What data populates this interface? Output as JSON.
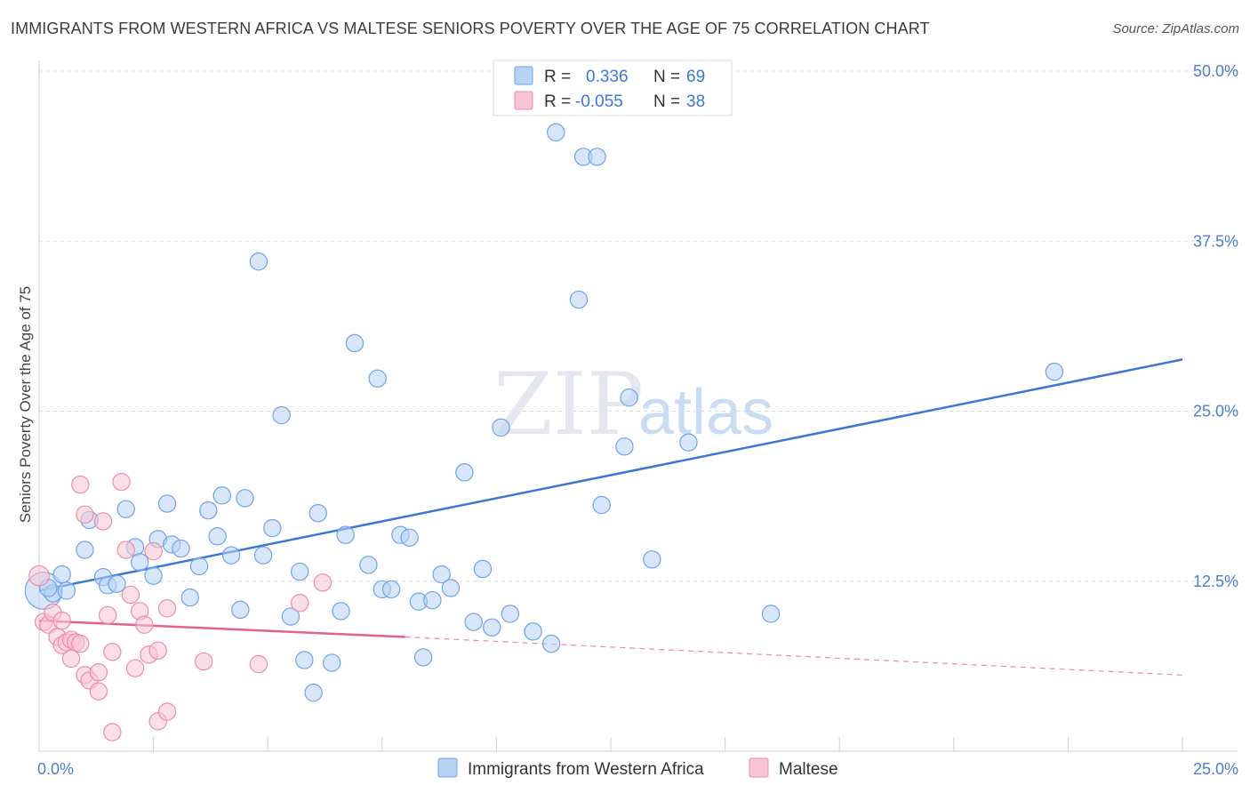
{
  "title": "IMMIGRANTS FROM WESTERN AFRICA VS MALTESE SENIORS POVERTY OVER THE AGE OF 75 CORRELATION CHART",
  "source": "Source: ZipAtlas.com",
  "watermark": {
    "zip": "ZIP",
    "atlas": "atlas"
  },
  "chart_data": {
    "type": "scatter",
    "ylabel": "Seniors Poverty Over the Age of 75",
    "xlim": [
      0,
      25
    ],
    "ylim": [
      0,
      50
    ],
    "x_tick_labels": [
      "0.0%",
      "25.0%"
    ],
    "y_ticks": [
      12.5,
      25.0,
      37.5,
      50.0
    ],
    "y_tick_labels": [
      "12.5%",
      "25.0%",
      "37.5%",
      "50.0%"
    ],
    "grid": true,
    "legend_position": "bottom",
    "stats": [
      {
        "r_label": "R =",
        "r": "0.336",
        "n_label": "N =",
        "n": "69"
      },
      {
        "r_label": "R =",
        "r": "-0.055",
        "n_label": "N =",
        "n": "38"
      }
    ],
    "series": [
      {
        "name": "Immigrants from Western Africa",
        "color": "#6fa3e8",
        "fill": "#b8d2f4",
        "trend": {
          "x": [
            0,
            25
          ],
          "y": [
            11.8,
            28.8
          ],
          "dashed_after": null
        },
        "points": [
          [
            0.1,
            11.8
          ],
          [
            0.3,
            11.6
          ],
          [
            0.6,
            11.8
          ],
          [
            0.5,
            13.0
          ],
          [
            1.0,
            14.8
          ],
          [
            1.1,
            17.0
          ],
          [
            1.4,
            12.8
          ],
          [
            1.5,
            12.2
          ],
          [
            1.7,
            12.3
          ],
          [
            1.9,
            17.8
          ],
          [
            2.1,
            15.0
          ],
          [
            2.2,
            13.9
          ],
          [
            2.5,
            12.9
          ],
          [
            2.6,
            15.6
          ],
          [
            2.8,
            18.2
          ],
          [
            2.9,
            15.2
          ],
          [
            3.1,
            14.9
          ],
          [
            3.3,
            11.3
          ],
          [
            3.5,
            13.6
          ],
          [
            3.7,
            17.7
          ],
          [
            3.9,
            15.8
          ],
          [
            4.0,
            18.8
          ],
          [
            4.2,
            14.4
          ],
          [
            4.4,
            10.4
          ],
          [
            4.5,
            18.6
          ],
          [
            4.8,
            36.0
          ],
          [
            4.9,
            14.4
          ],
          [
            5.1,
            16.4
          ],
          [
            5.3,
            24.7
          ],
          [
            5.5,
            9.9
          ],
          [
            5.7,
            13.2
          ],
          [
            5.8,
            6.7
          ],
          [
            6.0,
            4.3
          ],
          [
            6.1,
            17.5
          ],
          [
            6.4,
            6.5
          ],
          [
            6.6,
            10.3
          ],
          [
            6.7,
            15.9
          ],
          [
            6.9,
            30.0
          ],
          [
            7.2,
            13.7
          ],
          [
            7.4,
            27.4
          ],
          [
            7.5,
            11.9
          ],
          [
            7.7,
            11.9
          ],
          [
            7.9,
            15.9
          ],
          [
            8.1,
            15.7
          ],
          [
            8.3,
            11.0
          ],
          [
            8.4,
            6.9
          ],
          [
            8.6,
            11.1
          ],
          [
            8.8,
            13.0
          ],
          [
            9.0,
            12.0
          ],
          [
            9.3,
            20.5
          ],
          [
            9.5,
            9.5
          ],
          [
            9.7,
            13.4
          ],
          [
            9.9,
            9.1
          ],
          [
            10.1,
            23.8
          ],
          [
            10.3,
            10.1
          ],
          [
            10.8,
            8.8
          ],
          [
            11.2,
            7.9
          ],
          [
            11.3,
            45.5
          ],
          [
            11.8,
            33.2
          ],
          [
            11.9,
            43.7
          ],
          [
            12.2,
            43.7
          ],
          [
            12.3,
            18.1
          ],
          [
            12.8,
            22.4
          ],
          [
            12.9,
            26.0
          ],
          [
            13.4,
            14.1
          ],
          [
            14.2,
            22.7
          ],
          [
            16.0,
            10.1
          ],
          [
            22.2,
            27.9
          ],
          [
            0.2,
            12.0
          ]
        ],
        "sizes": [
          26,
          12,
          12,
          12,
          12,
          12,
          12,
          12,
          12,
          12,
          12,
          12,
          12,
          12,
          12,
          12,
          12,
          12,
          12,
          12,
          12,
          12,
          12,
          12,
          12,
          12,
          12,
          12,
          12,
          12,
          12,
          12,
          12,
          12,
          12,
          12,
          12,
          12,
          12,
          12,
          12,
          12,
          12,
          12,
          12,
          12,
          12,
          12,
          12,
          12,
          12,
          12,
          12,
          12,
          12,
          12,
          12,
          12,
          12,
          12,
          12,
          12,
          12,
          12,
          12,
          12,
          12,
          12,
          12
        ]
      },
      {
        "name": "Maltese",
        "color": "#ee8ca8",
        "fill": "#f7c4d3",
        "trend": {
          "x": [
            0,
            8.0
          ],
          "y": [
            9.6,
            8.4
          ],
          "dash_x": [
            8.0,
            25
          ],
          "dash_y": [
            8.4,
            5.6
          ]
        },
        "points": [
          [
            0.0,
            12.9
          ],
          [
            0.1,
            9.5
          ],
          [
            0.2,
            9.3
          ],
          [
            0.3,
            10.2
          ],
          [
            0.4,
            8.4
          ],
          [
            0.5,
            9.6
          ],
          [
            0.5,
            7.8
          ],
          [
            0.6,
            8.0
          ],
          [
            0.7,
            8.2
          ],
          [
            0.7,
            6.8
          ],
          [
            0.8,
            8.0
          ],
          [
            0.9,
            19.6
          ],
          [
            1.0,
            17.4
          ],
          [
            1.0,
            5.6
          ],
          [
            1.1,
            5.2
          ],
          [
            1.3,
            4.4
          ],
          [
            1.3,
            5.8
          ],
          [
            1.4,
            16.9
          ],
          [
            1.5,
            10.0
          ],
          [
            1.6,
            7.3
          ],
          [
            1.6,
            1.4
          ],
          [
            1.8,
            19.8
          ],
          [
            1.9,
            14.8
          ],
          [
            2.0,
            11.5
          ],
          [
            2.1,
            6.1
          ],
          [
            2.2,
            10.3
          ],
          [
            2.3,
            9.3
          ],
          [
            2.4,
            7.1
          ],
          [
            2.5,
            14.7
          ],
          [
            2.6,
            7.4
          ],
          [
            2.6,
            2.2
          ],
          [
            2.8,
            2.9
          ],
          [
            2.8,
            10.5
          ],
          [
            3.6,
            6.6
          ],
          [
            4.8,
            6.4
          ],
          [
            5.7,
            10.9
          ],
          [
            6.2,
            12.4
          ],
          [
            0.9,
            7.9
          ]
        ],
        "sizes": [
          14,
          12,
          12,
          12,
          12,
          12,
          12,
          12,
          12,
          12,
          12,
          12,
          12,
          12,
          12,
          12,
          12,
          12,
          12,
          12,
          12,
          12,
          12,
          12,
          12,
          12,
          12,
          12,
          12,
          12,
          12,
          12,
          12,
          12,
          12,
          12,
          12,
          12
        ]
      }
    ]
  }
}
